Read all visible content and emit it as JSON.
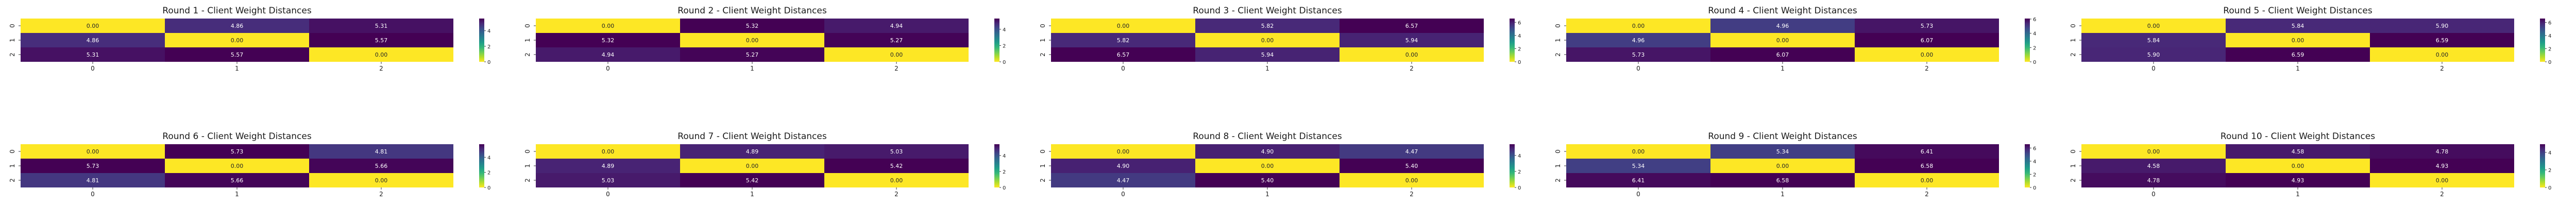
{
  "colormap": {
    "name": "viridis_r",
    "stops": [
      "#fde725",
      "#b5de2b",
      "#6ece58",
      "#35b779",
      "#1f9e89",
      "#26828e",
      "#31688e",
      "#3e4989",
      "#482878",
      "#440154"
    ]
  },
  "chart_data": [
    {
      "type": "heatmap",
      "title": "Round 1 - Client Weight Distances",
      "x_ticks": [
        "0",
        "1",
        "2"
      ],
      "y_ticks": [
        "0",
        "1",
        "2"
      ],
      "values": [
        [
          0.0,
          4.86,
          5.31
        ],
        [
          4.86,
          0.0,
          5.57
        ],
        [
          5.31,
          5.57,
          0.0
        ]
      ],
      "cell_labels": [
        [
          "0.00",
          "4.86",
          "5.31"
        ],
        [
          "4.86",
          "0.00",
          "5.57"
        ],
        [
          "5.31",
          "5.57",
          "0.00"
        ]
      ],
      "colorbar": {
        "vmin": 0,
        "vmax": 5.57,
        "ticks": [
          "0",
          "2",
          "4"
        ]
      }
    },
    {
      "type": "heatmap",
      "title": "Round 2 - Client Weight Distances",
      "x_ticks": [
        "0",
        "1",
        "2"
      ],
      "y_ticks": [
        "0",
        "1",
        "2"
      ],
      "values": [
        [
          0.0,
          5.32,
          4.94
        ],
        [
          5.32,
          0.0,
          5.27
        ],
        [
          4.94,
          5.27,
          0.0
        ]
      ],
      "cell_labels": [
        [
          "0.00",
          "5.32",
          "4.94"
        ],
        [
          "5.32",
          "0.00",
          "5.27"
        ],
        [
          "4.94",
          "5.27",
          "0.00"
        ]
      ],
      "colorbar": {
        "vmin": 0,
        "vmax": 5.32,
        "ticks": [
          "0",
          "2",
          "4"
        ]
      }
    },
    {
      "type": "heatmap",
      "title": "Round 3 - Client Weight Distances",
      "x_ticks": [
        "0",
        "1",
        "2"
      ],
      "y_ticks": [
        "0",
        "1",
        "2"
      ],
      "values": [
        [
          0.0,
          5.82,
          6.57
        ],
        [
          5.82,
          0.0,
          5.94
        ],
        [
          6.57,
          5.94,
          0.0
        ]
      ],
      "cell_labels": [
        [
          "0.00",
          "5.82",
          "6.57"
        ],
        [
          "5.82",
          "0.00",
          "5.94"
        ],
        [
          "6.57",
          "5.94",
          "0.00"
        ]
      ],
      "colorbar": {
        "vmin": 0,
        "vmax": 6.57,
        "ticks": [
          "0",
          "2",
          "4",
          "6"
        ]
      }
    },
    {
      "type": "heatmap",
      "title": "Round 4 - Client Weight Distances",
      "x_ticks": [
        "0",
        "1",
        "2"
      ],
      "y_ticks": [
        "0",
        "1",
        "2"
      ],
      "values": [
        [
          0.0,
          4.96,
          5.73
        ],
        [
          4.96,
          0.0,
          6.07
        ],
        [
          5.73,
          6.07,
          0.0
        ]
      ],
      "cell_labels": [
        [
          "0.00",
          "4.96",
          "5.73"
        ],
        [
          "4.96",
          "0.00",
          "6.07"
        ],
        [
          "5.73",
          "6.07",
          "0.00"
        ]
      ],
      "colorbar": {
        "vmin": 0,
        "vmax": 6.07,
        "ticks": [
          "0",
          "2",
          "4",
          "6"
        ]
      }
    },
    {
      "type": "heatmap",
      "title": "Round 5 - Client Weight Distances",
      "x_ticks": [
        "0",
        "1",
        "2"
      ],
      "y_ticks": [
        "0",
        "1",
        "2"
      ],
      "values": [
        [
          0.0,
          5.84,
          5.9
        ],
        [
          5.84,
          0.0,
          6.59
        ],
        [
          5.9,
          6.59,
          0.0
        ]
      ],
      "cell_labels": [
        [
          "0.00",
          "5.84",
          "5.90"
        ],
        [
          "5.84",
          "0.00",
          "6.59"
        ],
        [
          "5.90",
          "6.59",
          "0.00"
        ]
      ],
      "colorbar": {
        "vmin": 0,
        "vmax": 6.59,
        "ticks": [
          "0",
          "2",
          "4",
          "6"
        ]
      }
    },
    {
      "type": "heatmap",
      "title": "Round 6 - Client Weight Distances",
      "x_ticks": [
        "0",
        "1",
        "2"
      ],
      "y_ticks": [
        "0",
        "1",
        "2"
      ],
      "values": [
        [
          0.0,
          5.73,
          4.81
        ],
        [
          5.73,
          0.0,
          5.66
        ],
        [
          4.81,
          5.66,
          0.0
        ]
      ],
      "cell_labels": [
        [
          "0.00",
          "5.73",
          "4.81"
        ],
        [
          "5.73",
          "0.00",
          "5.66"
        ],
        [
          "4.81",
          "5.66",
          "0.00"
        ]
      ],
      "colorbar": {
        "vmin": 0,
        "vmax": 5.73,
        "ticks": [
          "0",
          "2",
          "4"
        ]
      }
    },
    {
      "type": "heatmap",
      "title": "Round 7 - Client Weight Distances",
      "x_ticks": [
        "0",
        "1",
        "2"
      ],
      "y_ticks": [
        "0",
        "1",
        "2"
      ],
      "values": [
        [
          0.0,
          4.89,
          5.03
        ],
        [
          4.89,
          0.0,
          5.42
        ],
        [
          5.03,
          5.42,
          0.0
        ]
      ],
      "cell_labels": [
        [
          "0.00",
          "4.89",
          "5.03"
        ],
        [
          "4.89",
          "0.00",
          "5.42"
        ],
        [
          "5.03",
          "5.42",
          "0.00"
        ]
      ],
      "colorbar": {
        "vmin": 0,
        "vmax": 5.42,
        "ticks": [
          "0",
          "2",
          "4"
        ]
      }
    },
    {
      "type": "heatmap",
      "title": "Round 8 - Client Weight Distances",
      "x_ticks": [
        "0",
        "1",
        "2"
      ],
      "y_ticks": [
        "0",
        "1",
        "2"
      ],
      "values": [
        [
          0.0,
          4.9,
          4.47
        ],
        [
          4.9,
          0.0,
          5.4
        ],
        [
          4.47,
          5.4,
          0.0
        ]
      ],
      "cell_labels": [
        [
          "0.00",
          "4.90",
          "4.47"
        ],
        [
          "4.90",
          "0.00",
          "5.40"
        ],
        [
          "4.47",
          "5.40",
          "0.00"
        ]
      ],
      "colorbar": {
        "vmin": 0,
        "vmax": 5.4,
        "ticks": [
          "0",
          "2",
          "4"
        ]
      }
    },
    {
      "type": "heatmap",
      "title": "Round 9 - Client Weight Distances",
      "x_ticks": [
        "0",
        "1",
        "2"
      ],
      "y_ticks": [
        "0",
        "1",
        "2"
      ],
      "values": [
        [
          0.0,
          5.34,
          6.41
        ],
        [
          5.34,
          0.0,
          6.58
        ],
        [
          6.41,
          6.58,
          0.0
        ]
      ],
      "cell_labels": [
        [
          "0.00",
          "5.34",
          "6.41"
        ],
        [
          "5.34",
          "0.00",
          "6.58"
        ],
        [
          "6.41",
          "6.58",
          "0.00"
        ]
      ],
      "colorbar": {
        "vmin": 0,
        "vmax": 6.58,
        "ticks": [
          "0",
          "2",
          "4",
          "6"
        ]
      }
    },
    {
      "type": "heatmap",
      "title": "Round 10 - Client Weight Distances",
      "x_ticks": [
        "0",
        "1",
        "2"
      ],
      "y_ticks": [
        "0",
        "1",
        "2"
      ],
      "values": [
        [
          0.0,
          4.58,
          4.78
        ],
        [
          4.58,
          0.0,
          4.93
        ],
        [
          4.78,
          4.93,
          0.0
        ]
      ],
      "cell_labels": [
        [
          "0.00",
          "4.58",
          "4.78"
        ],
        [
          "4.58",
          "0.00",
          "4.93"
        ],
        [
          "4.78",
          "4.93",
          "0.00"
        ]
      ],
      "colorbar": {
        "vmin": 0,
        "vmax": 4.93,
        "ticks": [
          "0",
          "2",
          "4"
        ]
      }
    }
  ]
}
